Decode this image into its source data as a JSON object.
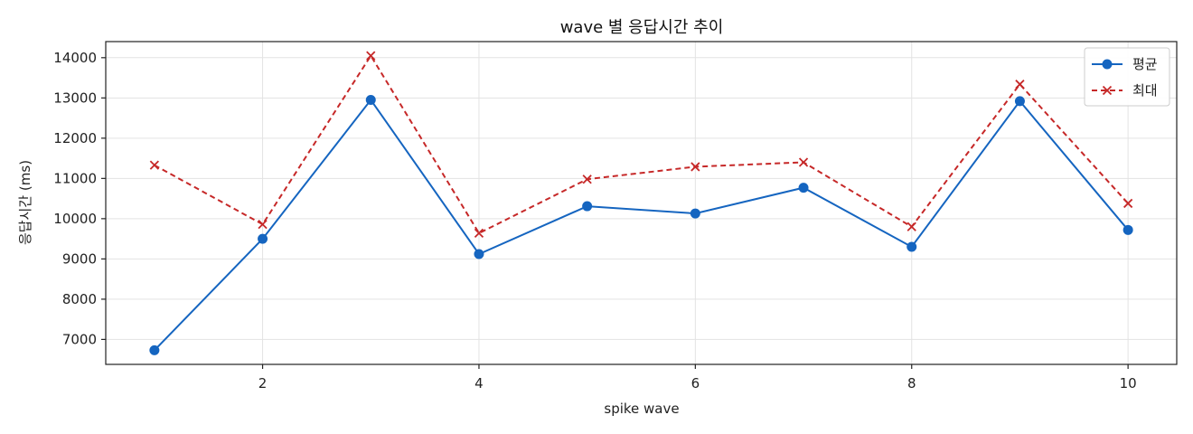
{
  "chart_data": {
    "type": "line",
    "title": "wave 별 응답시간 추이",
    "xlabel": "spike wave",
    "ylabel": "응답시간 (ms)",
    "x": [
      1,
      2,
      3,
      4,
      5,
      6,
      7,
      8,
      9,
      10
    ],
    "xticks": [
      2,
      4,
      6,
      8,
      10
    ],
    "yticks": [
      7000,
      8000,
      9000,
      10000,
      11000,
      12000,
      13000,
      14000
    ],
    "xlim": [
      0.55,
      10.45
    ],
    "ylim": [
      6380,
      14400
    ],
    "grid": true,
    "legend_position": "top-right",
    "series": [
      {
        "name": "평균",
        "color": "#1565c0",
        "marker": "circle",
        "linestyle": "solid",
        "values": [
          6730,
          9500,
          12950,
          9120,
          10310,
          10130,
          10770,
          9300,
          12920,
          9720
        ]
      },
      {
        "name": "최대",
        "color": "#c62828",
        "marker": "x",
        "linestyle": "dashed",
        "values": [
          11330,
          9860,
          14050,
          9640,
          10980,
          11290,
          11400,
          9800,
          13340,
          10380
        ]
      }
    ]
  }
}
